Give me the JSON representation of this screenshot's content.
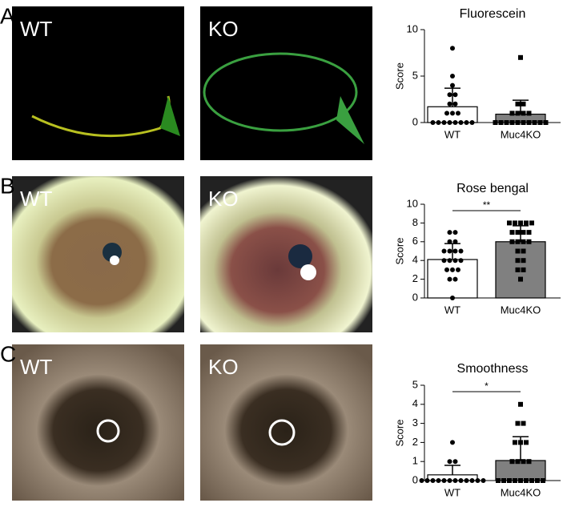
{
  "panels": [
    {
      "label": "A",
      "images": [
        "WT",
        "KO"
      ]
    },
    {
      "label": "B",
      "images": [
        "WT",
        "KO"
      ]
    },
    {
      "label": "C",
      "images": [
        "WT",
        "KO"
      ]
    }
  ],
  "chart_data": [
    {
      "type": "bar",
      "title": "Fluorescein",
      "ylabel": "Score",
      "categories": [
        "WT",
        "Muc4KO"
      ],
      "values": [
        1.7,
        0.9
      ],
      "errors": [
        2.0,
        1.5
      ],
      "colors": [
        "#ffffff",
        "#808080"
      ],
      "markers": [
        "circle",
        "square"
      ],
      "points": [
        [
          8,
          5,
          4,
          3,
          3,
          2,
          2,
          1,
          1,
          1,
          0,
          0,
          0,
          0,
          0,
          0,
          0,
          0
        ],
        [
          7,
          2,
          2,
          1,
          1,
          1,
          1,
          0,
          0,
          0,
          0,
          0,
          0,
          0,
          0,
          0,
          0
        ]
      ],
      "ylim": [
        0,
        10
      ],
      "yticks": [
        0,
        5,
        10
      ]
    },
    {
      "type": "bar",
      "title": "Rose bengal",
      "ylabel": "Score",
      "categories": [
        "WT",
        "Muc4KO"
      ],
      "values": [
        4.1,
        6.0
      ],
      "errors": [
        1.7,
        1.7
      ],
      "colors": [
        "#ffffff",
        "#808080"
      ],
      "markers": [
        "circle",
        "square"
      ],
      "points": [
        [
          7,
          7,
          6,
          6,
          5,
          5,
          5,
          5,
          4,
          4,
          4,
          4,
          3,
          3,
          3,
          2,
          2,
          0
        ],
        [
          8,
          8,
          8,
          8,
          8,
          7,
          7,
          7,
          7,
          6,
          6,
          6,
          6,
          5,
          5,
          4,
          4,
          3,
          3,
          2
        ]
      ],
      "ylim": [
        0,
        10
      ],
      "yticks": [
        0,
        2,
        4,
        6,
        8,
        10
      ],
      "annotation": "**"
    },
    {
      "type": "bar",
      "title": "Smoothness",
      "ylabel": "Score",
      "categories": [
        "WT",
        "Muc4KO"
      ],
      "values": [
        0.3,
        1.05
      ],
      "errors": [
        0.5,
        1.25
      ],
      "colors": [
        "#ffffff",
        "#808080"
      ],
      "markers": [
        "circle",
        "square"
      ],
      "points": [
        [
          2,
          1,
          1,
          0,
          0,
          0,
          0,
          0,
          0,
          0,
          0,
          0,
          0,
          0,
          0
        ],
        [
          4,
          3,
          3,
          2,
          2,
          2,
          1,
          1,
          1,
          1,
          0,
          0,
          0,
          0,
          0,
          0,
          0,
          0,
          0
        ]
      ],
      "ylim": [
        0,
        5
      ],
      "yticks": [
        0,
        1,
        2,
        3,
        4,
        5
      ],
      "annotation": "*"
    }
  ]
}
